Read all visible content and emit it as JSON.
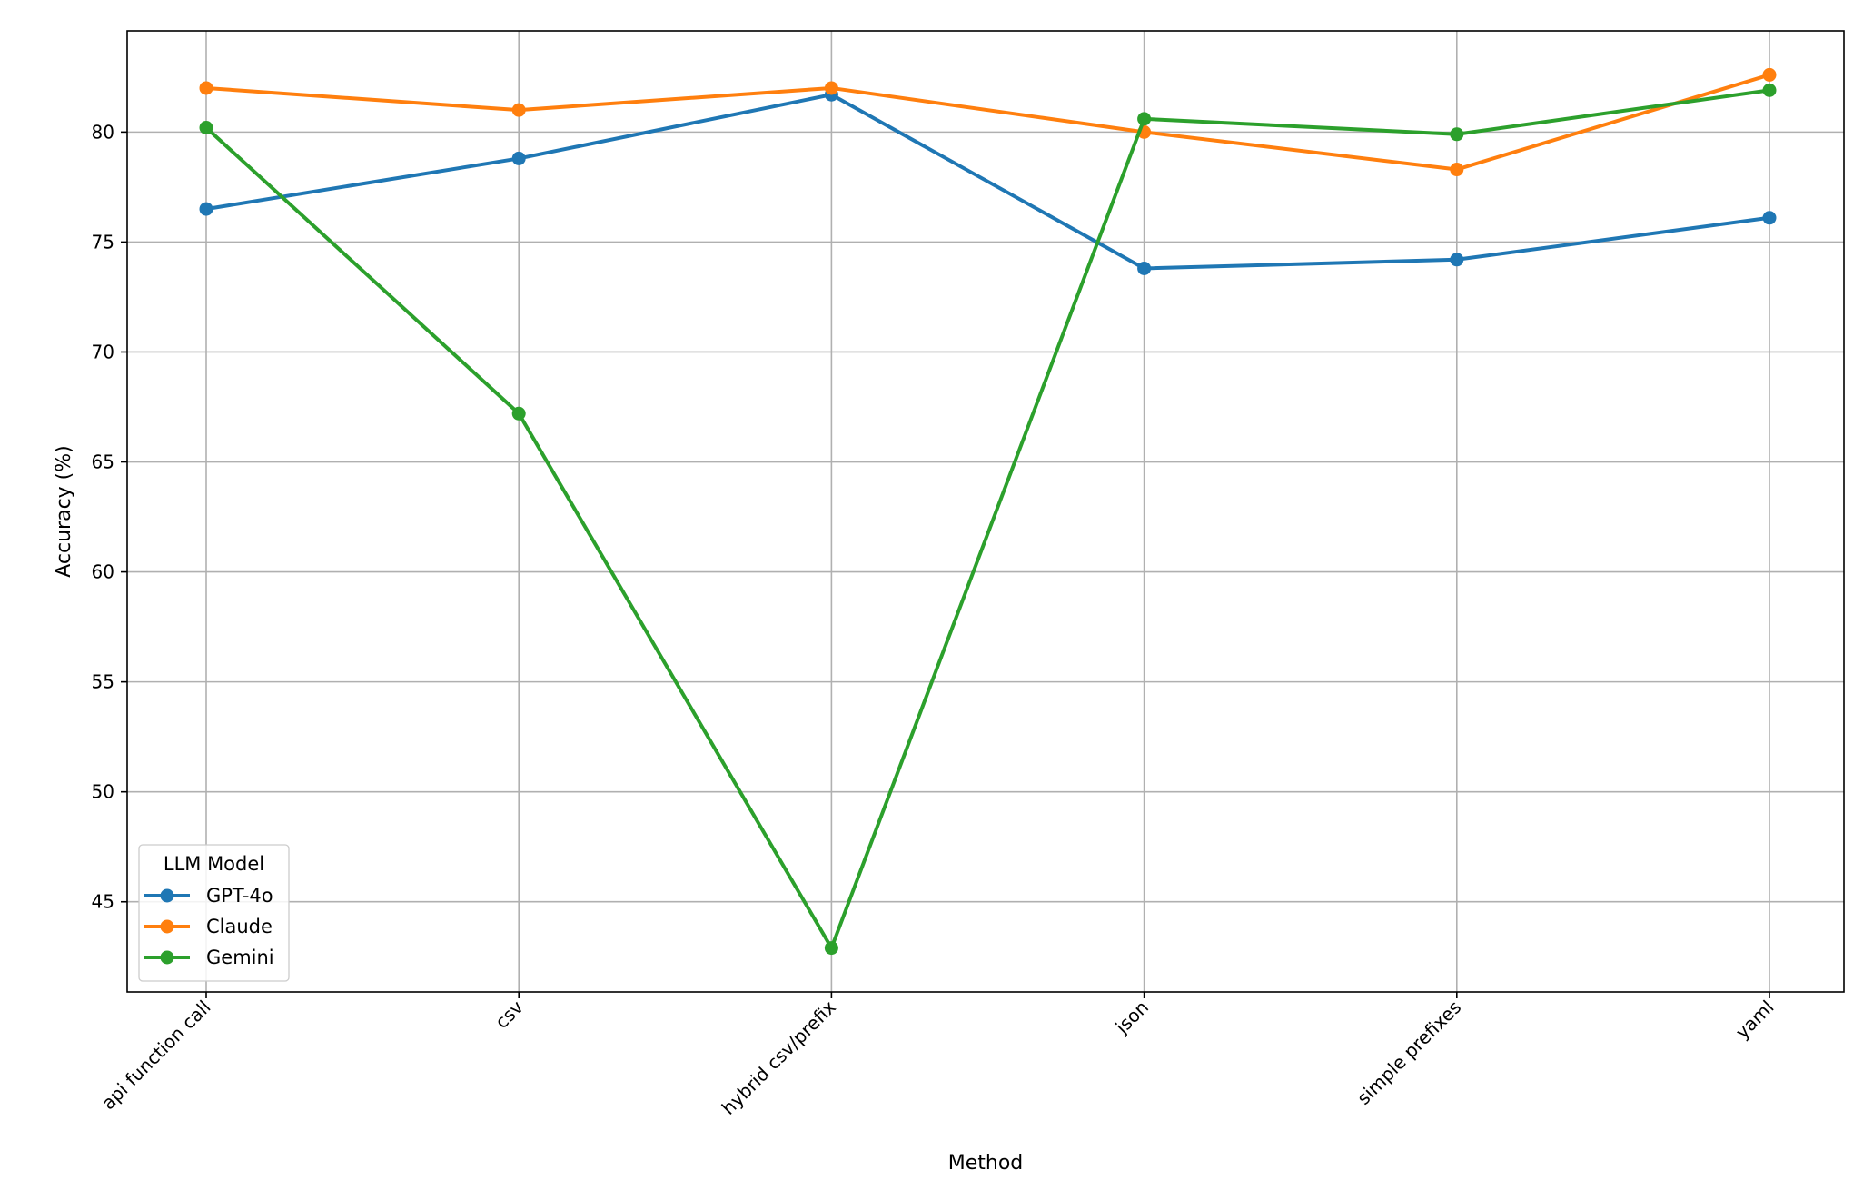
{
  "chart_data": {
    "type": "line",
    "title": "",
    "xlabel": "Method",
    "ylabel": "Accuracy (%)",
    "categories": [
      "api function call",
      "csv",
      "hybrid csv/prefix",
      "json",
      "simple prefixes",
      "yaml"
    ],
    "yticks": [
      45,
      50,
      55,
      60,
      65,
      70,
      75,
      80
    ],
    "ylim": [
      40.9,
      84.6
    ],
    "grid": true,
    "legend": {
      "title": "LLM Model",
      "position": "lower-left"
    },
    "series": [
      {
        "name": "GPT-4o",
        "color": "#1f77b4",
        "values": [
          76.5,
          78.8,
          81.7,
          73.8,
          74.2,
          76.1
        ]
      },
      {
        "name": "Claude",
        "color": "#ff7f0e",
        "values": [
          82.0,
          81.0,
          82.0,
          80.0,
          78.3,
          82.6
        ]
      },
      {
        "name": "Gemini",
        "color": "#2ca02c",
        "values": [
          80.2,
          67.2,
          42.9,
          80.6,
          79.9,
          81.9
        ]
      }
    ]
  }
}
